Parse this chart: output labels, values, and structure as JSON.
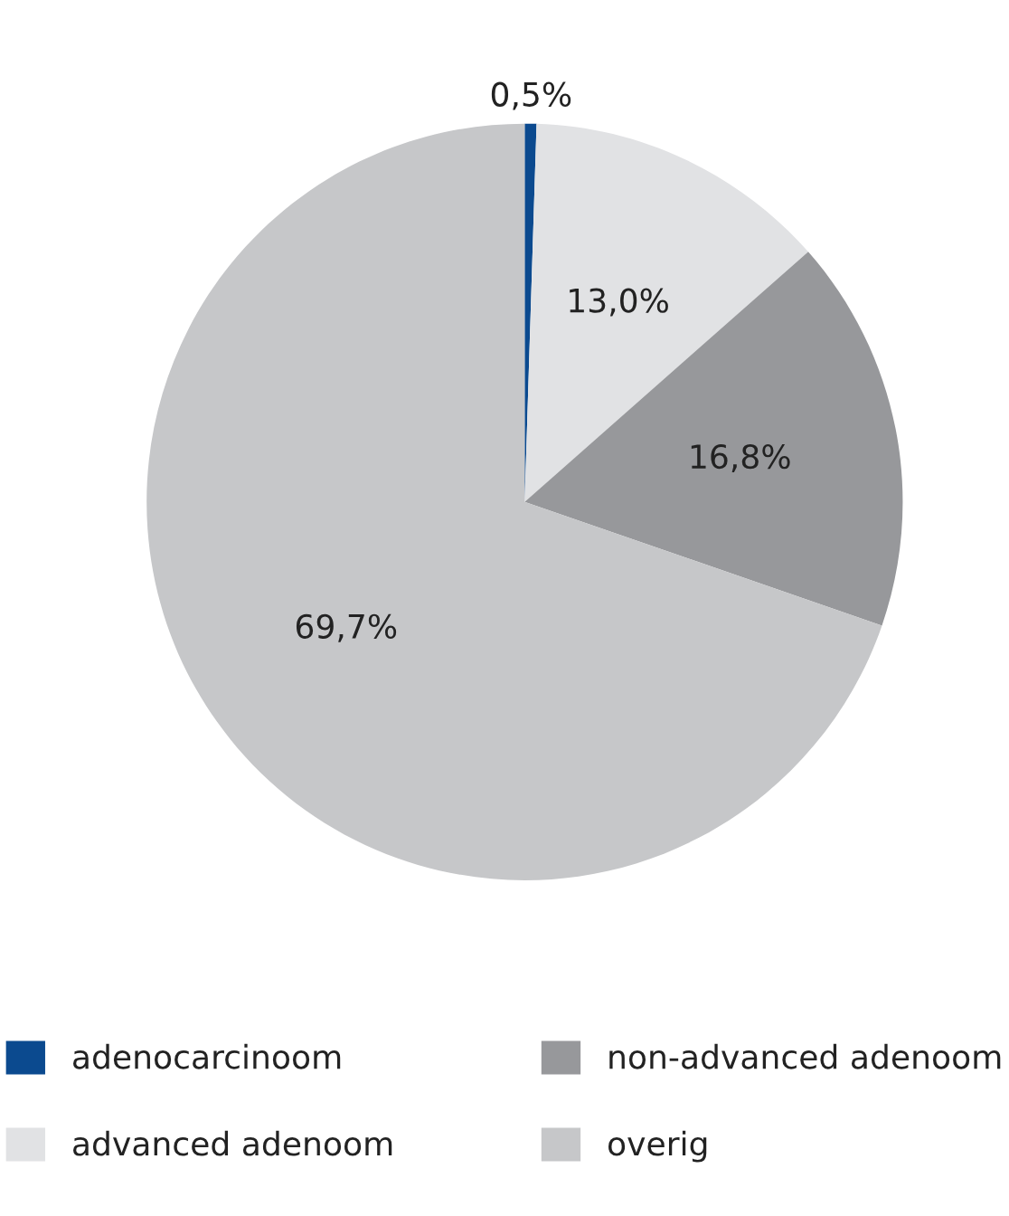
{
  "chart_data": {
    "type": "pie",
    "categories": [
      "adenocarcinoom",
      "advanced adenoom",
      "non-advanced adenoom",
      "overig"
    ],
    "values": [
      0.5,
      13.0,
      16.8,
      69.7
    ],
    "value_labels": [
      "0,5%",
      "13,0%",
      "16,8%",
      "69,7%"
    ],
    "colors": [
      "#0b4a8f",
      "#e1e2e4",
      "#97989b",
      "#c6c7c9"
    ],
    "legend": "bottom"
  }
}
